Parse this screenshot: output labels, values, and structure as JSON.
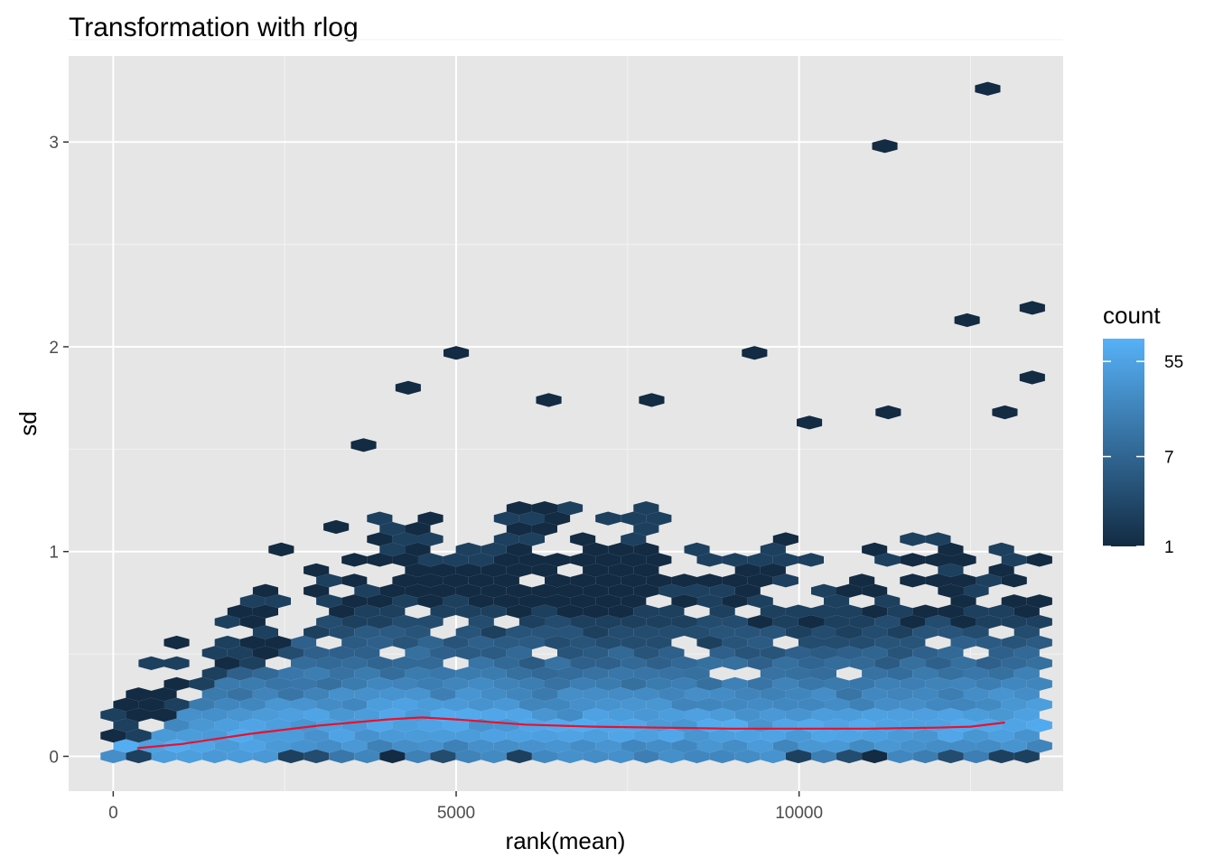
{
  "chart_data": {
    "type": "heatmap",
    "subtype": "hexbin",
    "title": "Transformation with rlog",
    "xlabel": "rank(mean)",
    "ylabel": "sd",
    "xlim": [
      -650,
      13850
    ],
    "ylim": [
      -0.17,
      3.42
    ],
    "x_ticks": [
      0,
      5000,
      10000
    ],
    "x_tick_labels": [
      "0",
      "5000",
      "10000"
    ],
    "y_ticks": [
      0,
      1,
      2,
      3
    ],
    "y_tick_labels": [
      "0",
      "1",
      "2",
      "3"
    ],
    "grid": true,
    "panel_background": "#e6e6e6",
    "legend": {
      "title": "count",
      "position": "right",
      "scale": "log",
      "min": 1,
      "max": 90,
      "breaks": [
        1,
        7,
        55
      ],
      "break_labels": [
        "1",
        "7",
        "55"
      ],
      "color_low": "#132b43",
      "color_high": "#56b1f7"
    },
    "trend_line": {
      "color": "#e8112d",
      "x": [
        350,
        1000,
        2000,
        3000,
        4000,
        4500,
        5000,
        6000,
        7000,
        8000,
        9000,
        10000,
        11000,
        12000,
        12500,
        13000
      ],
      "y": [
        0.04,
        0.06,
        0.11,
        0.15,
        0.18,
        0.19,
        0.18,
        0.155,
        0.145,
        0.14,
        0.135,
        0.135,
        0.135,
        0.14,
        0.145,
        0.165
      ]
    },
    "outliers": [
      {
        "x": 2450,
        "y": 1.01,
        "count": 1
      },
      {
        "x": 3250,
        "y": 1.12,
        "count": 1
      },
      {
        "x": 3650,
        "y": 1.52,
        "count": 1
      },
      {
        "x": 4300,
        "y": 1.8,
        "count": 1
      },
      {
        "x": 5000,
        "y": 1.97,
        "count": 1
      },
      {
        "x": 6350,
        "y": 1.74,
        "count": 1
      },
      {
        "x": 7850,
        "y": 1.74,
        "count": 1
      },
      {
        "x": 9350,
        "y": 1.97,
        "count": 1
      },
      {
        "x": 10150,
        "y": 1.63,
        "count": 1
      },
      {
        "x": 11250,
        "y": 2.98,
        "count": 1
      },
      {
        "x": 11300,
        "y": 1.68,
        "count": 1
      },
      {
        "x": 12450,
        "y": 2.13,
        "count": 1
      },
      {
        "x": 12750,
        "y": 3.26,
        "count": 1
      },
      {
        "x": 13000,
        "y": 1.68,
        "count": 1
      },
      {
        "x": 13400,
        "y": 2.19,
        "count": 1
      },
      {
        "x": 13400,
        "y": 1.85,
        "count": 1
      }
    ]
  }
}
